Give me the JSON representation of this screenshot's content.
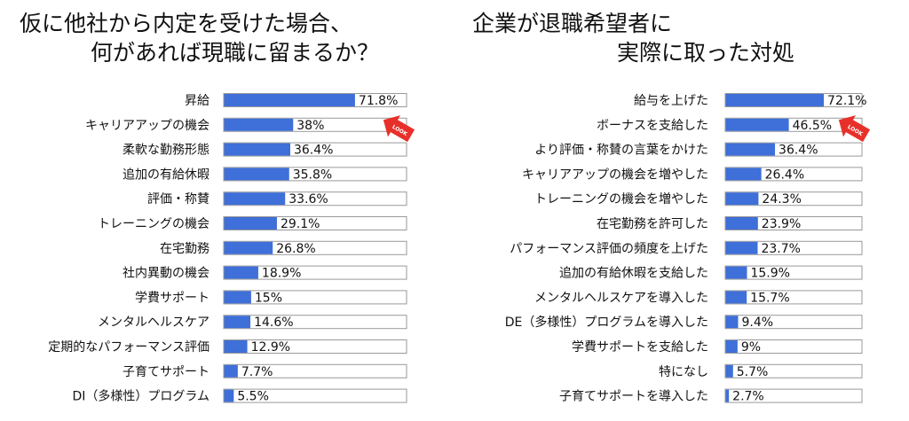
{
  "colors": {
    "bar": "#3f6fd8",
    "track_border": "#999999",
    "arrow": "#e8302a"
  },
  "chart_data": [
    {
      "type": "bar",
      "orientation": "horizontal",
      "title_lines": [
        "仮に他社から内定を受けた場合、",
        "何があれば現職に留まるか？"
      ],
      "categories": [
        "昇給",
        "キャリアアップの機会",
        "柔軟な勤務形態",
        "追加の有給休暇",
        "評価・称賛",
        "トレーニングの機会",
        "在宅勤務",
        "社内異動の機会",
        "学費サポート",
        "メンタルヘルスケア",
        "定期的なパフォーマンス評価",
        "子育てサポート",
        "DI（多様性）プログラム"
      ],
      "values": [
        71.8,
        38,
        36.4,
        35.8,
        33.6,
        29.1,
        26.8,
        18.9,
        15,
        14.6,
        12.9,
        7.7,
        5.5
      ],
      "value_labels": [
        "71.8%",
        "38%",
        "36.4%",
        "35.8%",
        "33.6%",
        "29.1%",
        "26.8%",
        "18.9%",
        "15%",
        "14.6%",
        "12.9%",
        "7.7%",
        "5.5%"
      ],
      "xlim": [
        0,
        100
      ],
      "badge": "LOOK"
    },
    {
      "type": "bar",
      "orientation": "horizontal",
      "title_lines": [
        "企業が退職希望者に",
        "実際に取った対処"
      ],
      "categories": [
        "給与を上げた",
        "ボーナスを支給した",
        "より評価・称賛の言葉をかけた",
        "キャリアアップの機会を増やした",
        "トレーニングの機会を増やした",
        "在宅勤務を許可した",
        "パフォーマンス評価の頻度を上げた",
        "追加の有給休暇を支給した",
        "メンタルヘルスケアを導入した",
        "DE（多様性）プログラムを導入した",
        "学費サポートを支給した",
        "特になし",
        "子育てサポートを導入した"
      ],
      "values": [
        72.1,
        46.5,
        36.4,
        26.4,
        24.3,
        23.9,
        23.7,
        15.9,
        15.7,
        9.4,
        9,
        5.7,
        2.7
      ],
      "value_labels": [
        "72.1%",
        "46.5%",
        "36.4%",
        "26.4%",
        "24.3%",
        "23.9%",
        "23.7%",
        "15.9%",
        "15.7%",
        "9.4%",
        "9%",
        "5.7%",
        "2.7%"
      ],
      "xlim": [
        0,
        100
      ],
      "badge": "LOOK"
    }
  ]
}
